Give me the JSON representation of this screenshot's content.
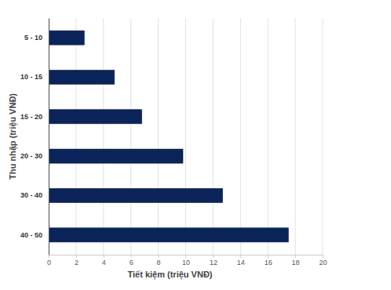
{
  "chart_data": {
    "type": "bar",
    "orientation": "horizontal",
    "x_label": "Tiết kiệm (triệu VNĐ)",
    "y_label": "Thu nhập (triệu VNĐ)",
    "categories": [
      "5 - 10",
      "10 - 15",
      "15 - 20",
      "20 - 30",
      "30 - 40",
      "40 - 50"
    ],
    "values": [
      2.6,
      4.8,
      6.8,
      9.8,
      12.7,
      17.5
    ],
    "color": "#0b2459",
    "xlim": [
      0,
      20
    ],
    "xticks": [
      0,
      2,
      4,
      6,
      8,
      10,
      12,
      14,
      16,
      18,
      20
    ],
    "grid": true
  }
}
